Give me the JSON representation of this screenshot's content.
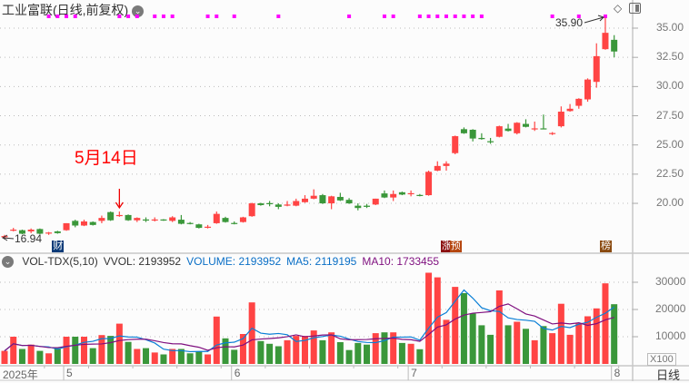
{
  "header": {
    "title": "工业富联(日线,前复权)",
    "menu_icon": "chevron-down-circle-icon",
    "right_icons": [
      "diamond-icon",
      "panel-toggle-icon"
    ]
  },
  "volume_header": {
    "indicator": "VOL-TDX(5,10)",
    "vvol": "VVOL: 2193952",
    "volume": "VOLUME: 2193952",
    "ma5": "MA5: 2119195",
    "ma10": "MA10: 1733455"
  },
  "annotations": {
    "low_label": "16.94",
    "high_label": "35.90",
    "note": "5月14日"
  },
  "events": [
    {
      "text": "财",
      "candle": 7,
      "color": "#0a3a78"
    },
    {
      "text": "涨",
      "candle": 51,
      "color": "#8b1010"
    },
    {
      "text": "预",
      "candle": 52,
      "color": "#b5460f"
    },
    {
      "text": "榜",
      "candle": 69,
      "color": "#8a4a10"
    }
  ],
  "colors": {
    "up": "#ff4444",
    "down": "#3a973a",
    "ma5": "#0a7fd6",
    "ma10": "#7f0f7f",
    "marker": "#ff00ff"
  },
  "footer": {
    "period": "日线",
    "unit": "X100"
  },
  "chart_data": [
    {
      "type": "candlestick",
      "title": "工业富联(日线,前复权)",
      "y_ticks": [
        "35.00",
        "32.50",
        "30.00",
        "27.50",
        "25.00",
        "22.50",
        "20.00"
      ],
      "ylim": [
        16.5,
        36.0
      ],
      "grid": true,
      "x_labels": [
        {
          "text": "2025年",
          "candle": 1
        },
        {
          "text": "5",
          "candle": 8
        },
        {
          "text": "6",
          "candle": 27
        },
        {
          "text": "7",
          "candle": 47
        },
        {
          "text": "8",
          "candle": 70
        }
      ],
      "marker_candles": [
        6,
        7,
        8,
        9,
        14,
        15,
        16,
        18,
        19,
        20,
        24,
        25,
        27,
        32,
        40,
        44,
        45,
        48,
        49,
        50,
        51,
        52,
        53,
        54,
        55,
        63,
        66,
        69
      ],
      "ohlc": [
        [
          17.1,
          17.3,
          16.94,
          17.2
        ],
        [
          17.7,
          17.9,
          17.6,
          17.75
        ],
        [
          17.7,
          17.75,
          17.35,
          17.4
        ],
        [
          17.6,
          17.85,
          17.45,
          17.75
        ],
        [
          17.8,
          17.85,
          17.35,
          17.4
        ],
        [
          17.45,
          17.55,
          17.3,
          17.5
        ],
        [
          17.6,
          17.65,
          17.4,
          17.45
        ],
        [
          17.7,
          18.3,
          17.65,
          18.3
        ],
        [
          18.5,
          18.6,
          17.95,
          18.1
        ],
        [
          18.1,
          18.6,
          18.05,
          18.45
        ],
        [
          18.4,
          18.45,
          18.1,
          18.15
        ],
        [
          18.5,
          18.95,
          18.3,
          18.75
        ],
        [
          19.25,
          19.3,
          18.5,
          18.55
        ],
        [
          18.95,
          19.3,
          18.85,
          19.0
        ],
        [
          19.0,
          19.05,
          18.5,
          18.55
        ],
        [
          18.55,
          18.8,
          18.4,
          18.75
        ],
        [
          18.62,
          18.8,
          18.4,
          18.6
        ],
        [
          18.6,
          18.8,
          18.45,
          18.62
        ],
        [
          18.62,
          18.65,
          18.5,
          18.6
        ],
        [
          18.5,
          18.9,
          18.4,
          18.8
        ],
        [
          18.6,
          19.0,
          18.2,
          18.25
        ],
        [
          18.32,
          18.4,
          18.2,
          18.3
        ],
        [
          18.2,
          18.25,
          17.85,
          17.9
        ],
        [
          17.98,
          18.15,
          17.85,
          18.0
        ],
        [
          18.3,
          19.3,
          18.25,
          19.1
        ],
        [
          18.75,
          18.85,
          18.35,
          18.4
        ],
        [
          18.32,
          18.45,
          18.2,
          18.3
        ],
        [
          18.4,
          18.85,
          18.35,
          18.8
        ],
        [
          18.9,
          20.05,
          18.85,
          20.0
        ],
        [
          20.0,
          20.05,
          19.8,
          19.85
        ],
        [
          20.02,
          20.2,
          19.75,
          20.0
        ],
        [
          19.9,
          20.0,
          19.5,
          19.7
        ],
        [
          19.8,
          20.2,
          19.75,
          19.9
        ],
        [
          19.8,
          20.4,
          19.75,
          20.2
        ],
        [
          20.1,
          20.7,
          20.05,
          20.4
        ],
        [
          20.4,
          21.2,
          20.35,
          20.65
        ],
        [
          20.7,
          20.8,
          19.95,
          20.0
        ],
        [
          20.0,
          20.65,
          19.5,
          20.6
        ],
        [
          20.55,
          20.9,
          20.2,
          20.25
        ],
        [
          20.3,
          20.45,
          19.95,
          20.0
        ],
        [
          19.8,
          20.0,
          19.4,
          19.6
        ],
        [
          19.8,
          19.95,
          19.6,
          19.7
        ],
        [
          19.9,
          20.4,
          19.85,
          20.4
        ],
        [
          20.85,
          21.1,
          20.45,
          20.5
        ],
        [
          20.5,
          21.1,
          20.2,
          20.8
        ],
        [
          20.95,
          21.0,
          20.7,
          20.75
        ],
        [
          20.83,
          21.1,
          20.6,
          20.87
        ],
        [
          20.72,
          20.8,
          20.6,
          20.7
        ],
        [
          20.7,
          22.8,
          20.65,
          22.7
        ],
        [
          22.8,
          23.6,
          22.75,
          23.2
        ],
        [
          23.2,
          23.6,
          22.8,
          23.4
        ],
        [
          24.3,
          25.8,
          24.2,
          25.75
        ],
        [
          26.35,
          26.5,
          25.95,
          26.0
        ],
        [
          26.3,
          26.35,
          25.3,
          25.55
        ],
        [
          25.6,
          26.0,
          25.45,
          25.5
        ],
        [
          25.32,
          25.6,
          25.1,
          25.3
        ],
        [
          25.7,
          26.65,
          25.65,
          26.6
        ],
        [
          26.4,
          26.8,
          26.15,
          26.2
        ],
        [
          26.0,
          26.95,
          25.9,
          26.9
        ],
        [
          26.8,
          27.2,
          26.5,
          26.55
        ],
        [
          26.38,
          27.0,
          26.2,
          26.42
        ],
        [
          26.42,
          27.6,
          26.35,
          26.38
        ],
        [
          25.98,
          26.1,
          25.85,
          26.02
        ],
        [
          26.6,
          28.3,
          26.5,
          27.85
        ],
        [
          27.9,
          28.5,
          27.85,
          28.1
        ],
        [
          28.35,
          29.0,
          28.1,
          28.95
        ],
        [
          28.9,
          30.7,
          28.7,
          30.6
        ],
        [
          30.4,
          33.7,
          29.9,
          32.6
        ],
        [
          33.2,
          35.9,
          33.15,
          34.6
        ],
        [
          34.0,
          34.4,
          32.5,
          33.0
        ]
      ]
    },
    {
      "type": "bar",
      "title": "VOL-TDX(5,10)",
      "unit": "X100",
      "y_ticks": [
        "30000",
        "20000",
        "10000"
      ],
      "ylim": [
        0,
        33500
      ],
      "series": [
        {
          "name": "VOLUME",
          "values": [
            4800,
            10000,
            5500,
            7100,
            4800,
            3900,
            5800,
            10000,
            10000,
            10000,
            5800,
            10600,
            10300,
            14800,
            8100,
            5500,
            5800,
            4200,
            3500,
            5500,
            5500,
            3900,
            4500,
            3500,
            17400,
            9400,
            5200,
            11000,
            22600,
            8400,
            7400,
            6500,
            8700,
            10300,
            10300,
            12300,
            8700,
            11600,
            8000,
            5100,
            7700,
            7100,
            11300,
            11600,
            11600,
            7700,
            7400,
            5400,
            33500,
            31800,
            16200,
            28300,
            26000,
            18500,
            14200,
            10700,
            27000,
            14200,
            15500,
            12900,
            8700,
            13900,
            11300,
            22100,
            10700,
            14900,
            17500,
            20400,
            29600,
            21940
          ]
        },
        {
          "name": "MA5",
          "period": 5
        },
        {
          "name": "MA10",
          "period": 10
        }
      ]
    }
  ]
}
